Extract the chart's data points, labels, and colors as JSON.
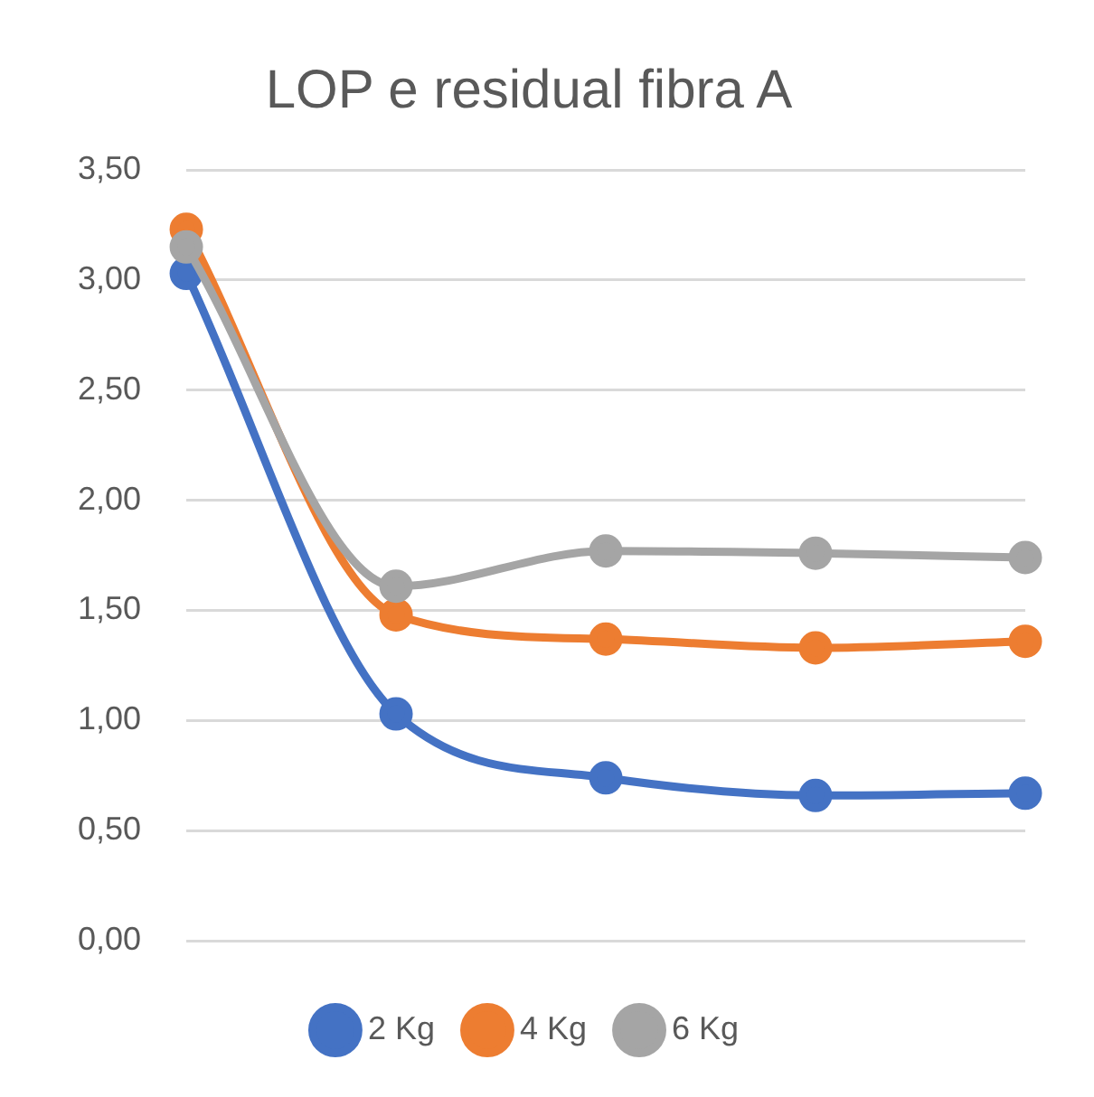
{
  "chart_data": {
    "type": "line",
    "title": "LOP e residual fibra A",
    "categories": [
      null,
      null,
      null,
      null,
      null
    ],
    "series": [
      {
        "name": "2 Kg",
        "color": "#4472c4",
        "values": [
          3.03,
          1.03,
          0.74,
          0.66,
          0.67
        ]
      },
      {
        "name": "4 Kg",
        "color": "#ed7d31",
        "values": [
          3.23,
          1.48,
          1.37,
          1.33,
          1.36
        ]
      },
      {
        "name": "6 Kg",
        "color": "#a5a5a5",
        "values": [
          3.15,
          1.61,
          1.77,
          1.76,
          1.74
        ]
      }
    ],
    "ylim": [
      0,
      3.5
    ],
    "yticks": [
      {
        "value": 0,
        "label": "0,00"
      },
      {
        "value": 0.5,
        "label": "0,50"
      },
      {
        "value": 1,
        "label": "1,00"
      },
      {
        "value": 1.5,
        "label": "1,50"
      },
      {
        "value": 2,
        "label": "2,00"
      },
      {
        "value": 2.5,
        "label": "2,50"
      },
      {
        "value": 3,
        "label": "3,00"
      },
      {
        "value": 3.5,
        "label": "3,50"
      }
    ],
    "grid": "y",
    "legend": "bottom",
    "marker": "circle",
    "line_style": "solid"
  }
}
